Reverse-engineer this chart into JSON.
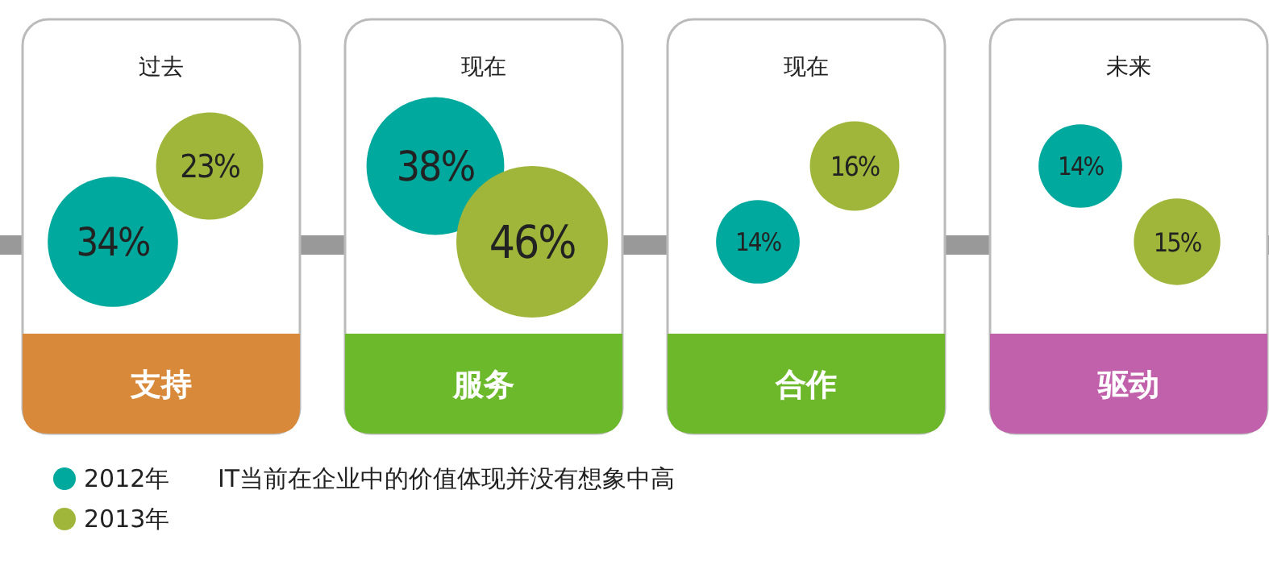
{
  "chart_data": {
    "type": "other",
    "subtitle": "IT当前在企业中的价值体现并没有想象中高",
    "categories": [
      "支持",
      "服务",
      "合作",
      "驱动"
    ],
    "series": [
      {
        "name": "2012年",
        "color": "#00a99d",
        "values": [
          34,
          38,
          14,
          14
        ],
        "value_labels": [
          "34%",
          "38%",
          "14%",
          "14%"
        ]
      },
      {
        "name": "2013年",
        "color": "#9fb63a",
        "values": [
          23,
          46,
          16,
          15
        ],
        "value_labels": [
          "23%",
          "46%",
          "16%",
          "15%"
        ]
      }
    ],
    "annotations": [
      {
        "text": "过去",
        "x": "支持"
      },
      {
        "text": "现在",
        "x": "服务"
      },
      {
        "text": "现在",
        "x": "合作"
      },
      {
        "text": "未来",
        "x": "驱动"
      }
    ],
    "legend": "bottom left"
  }
}
